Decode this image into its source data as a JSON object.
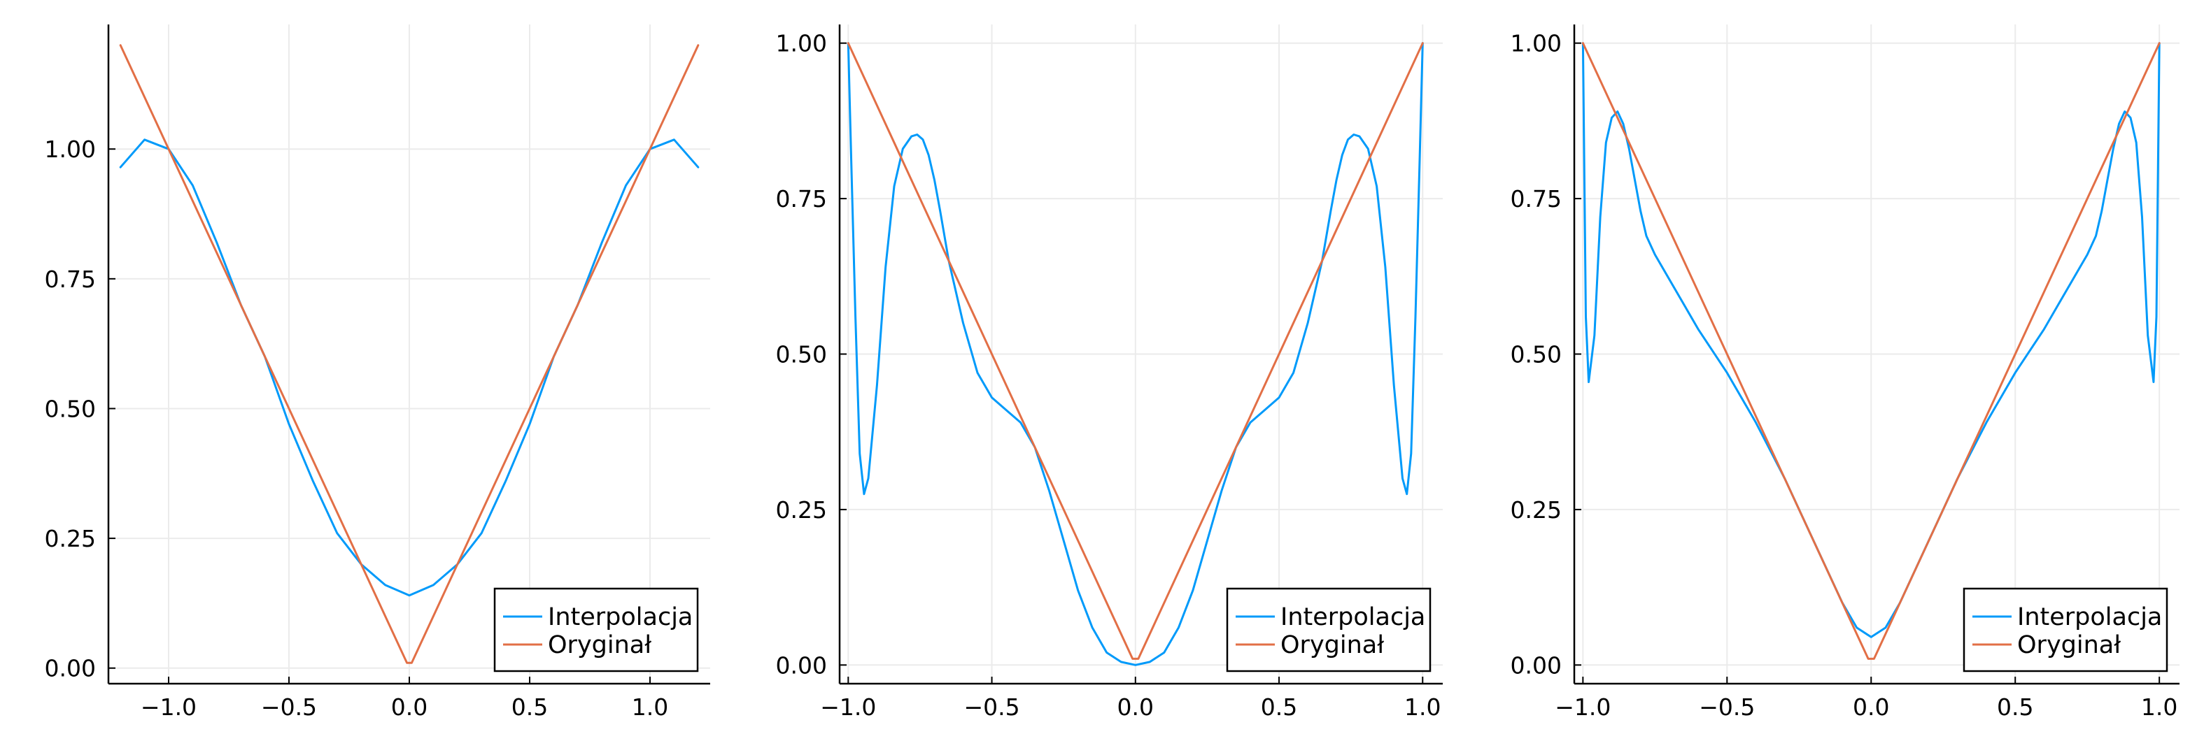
{
  "colors": {
    "interpolation": "#009AFA",
    "original": "#E26F46",
    "grid": "#EBEBEB",
    "axis": "#000000",
    "background": "#FFFFFF"
  },
  "legend": {
    "interpolation_label": "Interpolacja",
    "original_label": "Oryginał",
    "placement": "bottom-right"
  },
  "chart_data": [
    {
      "type": "line",
      "title": "",
      "xlabel": "",
      "ylabel": "",
      "grid": true,
      "xlim": [
        -1.25,
        1.25
      ],
      "ylim": [
        -0.03,
        1.24
      ],
      "x_ticks": [
        -1.0,
        -0.5,
        0.0,
        0.5,
        1.0
      ],
      "x_tick_labels": [
        "−1.0",
        "−0.5",
        "0.0",
        "0.5",
        "1.0"
      ],
      "y_ticks": [
        0.0,
        0.25,
        0.5,
        0.75,
        1.0
      ],
      "y_tick_labels": [
        "0.00",
        "0.25",
        "0.50",
        "0.75",
        "1.00"
      ],
      "series": [
        {
          "name": "Interpolacja",
          "x": [
            -1.2,
            -1.1,
            -1.0,
            -0.9,
            -0.8,
            -0.7,
            -0.6,
            -0.5,
            -0.4,
            -0.3,
            -0.2,
            -0.1,
            0.0,
            0.1,
            0.2,
            0.3,
            0.4,
            0.5,
            0.6,
            0.7,
            0.8,
            0.9,
            1.0,
            1.1,
            1.2
          ],
          "y": [
            0.965,
            1.018,
            1.0,
            0.93,
            0.82,
            0.7,
            0.6,
            0.47,
            0.36,
            0.26,
            0.2,
            0.16,
            0.14,
            0.16,
            0.2,
            0.26,
            0.36,
            0.47,
            0.6,
            0.7,
            0.82,
            0.93,
            1.0,
            1.018,
            0.965
          ]
        },
        {
          "name": "Oryginał",
          "x": [
            -1.2,
            -0.01,
            0.01,
            1.2
          ],
          "y": [
            1.2,
            0.01,
            0.01,
            1.2
          ]
        }
      ]
    },
    {
      "type": "line",
      "title": "",
      "xlabel": "",
      "ylabel": "",
      "grid": true,
      "xlim": [
        -1.03,
        1.07
      ],
      "ylim": [
        -0.03,
        1.03
      ],
      "x_ticks": [
        -1.0,
        -0.5,
        0.0,
        0.5,
        1.0
      ],
      "x_tick_labels": [
        "−1.0",
        "−0.5",
        "0.0",
        "0.5",
        "1.0"
      ],
      "y_ticks": [
        0.0,
        0.25,
        0.5,
        0.75,
        1.0
      ],
      "y_tick_labels": [
        "0.00",
        "0.25",
        "0.50",
        "0.75",
        "1.00"
      ],
      "series": [
        {
          "name": "Interpolacja",
          "x": [
            -1.0,
            -0.99,
            -0.975,
            -0.96,
            -0.945,
            -0.93,
            -0.9,
            -0.87,
            -0.84,
            -0.81,
            -0.78,
            -0.76,
            -0.74,
            -0.72,
            -0.7,
            -0.68,
            -0.65,
            -0.6,
            -0.55,
            -0.5,
            -0.45,
            -0.4,
            -0.35,
            -0.3,
            -0.25,
            -0.2,
            -0.15,
            -0.1,
            -0.05,
            0.0,
            0.05,
            0.1,
            0.15,
            0.2,
            0.25,
            0.3,
            0.35,
            0.4,
            0.45,
            0.5,
            0.55,
            0.6,
            0.65,
            0.68,
            0.7,
            0.72,
            0.74,
            0.76,
            0.78,
            0.81,
            0.84,
            0.87,
            0.9,
            0.93,
            0.945,
            0.96,
            0.975,
            0.99,
            1.0
          ],
          "y": [
            1.0,
            0.82,
            0.56,
            0.34,
            0.275,
            0.3,
            0.45,
            0.64,
            0.77,
            0.83,
            0.85,
            0.853,
            0.845,
            0.82,
            0.78,
            0.73,
            0.65,
            0.55,
            0.47,
            0.43,
            0.41,
            0.39,
            0.35,
            0.28,
            0.2,
            0.12,
            0.06,
            0.02,
            0.005,
            0.0,
            0.005,
            0.02,
            0.06,
            0.12,
            0.2,
            0.28,
            0.35,
            0.39,
            0.41,
            0.43,
            0.47,
            0.55,
            0.65,
            0.73,
            0.78,
            0.82,
            0.845,
            0.853,
            0.85,
            0.83,
            0.77,
            0.64,
            0.45,
            0.3,
            0.275,
            0.34,
            0.56,
            0.82,
            1.0
          ]
        },
        {
          "name": "Oryginał",
          "x": [
            -1.0,
            -0.01,
            0.01,
            1.0
          ],
          "y": [
            1.0,
            0.01,
            0.01,
            1.0
          ]
        }
      ]
    },
    {
      "type": "line",
      "title": "",
      "xlabel": "",
      "ylabel": "",
      "grid": true,
      "xlim": [
        -1.03,
        1.07
      ],
      "ylim": [
        -0.03,
        1.03
      ],
      "x_ticks": [
        -1.0,
        -0.5,
        0.0,
        0.5,
        1.0
      ],
      "x_tick_labels": [
        "−1.0",
        "−0.5",
        "0.0",
        "0.5",
        "1.0"
      ],
      "y_ticks": [
        0.0,
        0.25,
        0.5,
        0.75,
        1.0
      ],
      "y_tick_labels": [
        "0.00",
        "0.25",
        "0.50",
        "0.75",
        "1.00"
      ],
      "series": [
        {
          "name": "Interpolacja",
          "x": [
            -1.0,
            -0.99,
            -0.98,
            -0.96,
            -0.94,
            -0.92,
            -0.9,
            -0.88,
            -0.86,
            -0.84,
            -0.82,
            -0.8,
            -0.78,
            -0.75,
            -0.7,
            -0.65,
            -0.6,
            -0.5,
            -0.4,
            -0.3,
            -0.2,
            -0.1,
            -0.05,
            0.0,
            0.05,
            0.1,
            0.2,
            0.3,
            0.4,
            0.5,
            0.6,
            0.65,
            0.7,
            0.75,
            0.78,
            0.8,
            0.82,
            0.84,
            0.86,
            0.88,
            0.9,
            0.92,
            0.94,
            0.96,
            0.98,
            0.99,
            1.0
          ],
          "y": [
            1.0,
            0.56,
            0.455,
            0.53,
            0.72,
            0.84,
            0.88,
            0.89,
            0.87,
            0.83,
            0.78,
            0.73,
            0.69,
            0.66,
            0.62,
            0.58,
            0.54,
            0.47,
            0.39,
            0.3,
            0.2,
            0.1,
            0.06,
            0.045,
            0.06,
            0.1,
            0.2,
            0.3,
            0.39,
            0.47,
            0.54,
            0.58,
            0.62,
            0.66,
            0.69,
            0.73,
            0.78,
            0.83,
            0.87,
            0.89,
            0.88,
            0.84,
            0.72,
            0.53,
            0.455,
            0.56,
            1.0
          ]
        },
        {
          "name": "Oryginał",
          "x": [
            -1.0,
            -0.01,
            0.01,
            1.0
          ],
          "y": [
            1.0,
            0.01,
            0.01,
            1.0
          ]
        }
      ]
    }
  ]
}
